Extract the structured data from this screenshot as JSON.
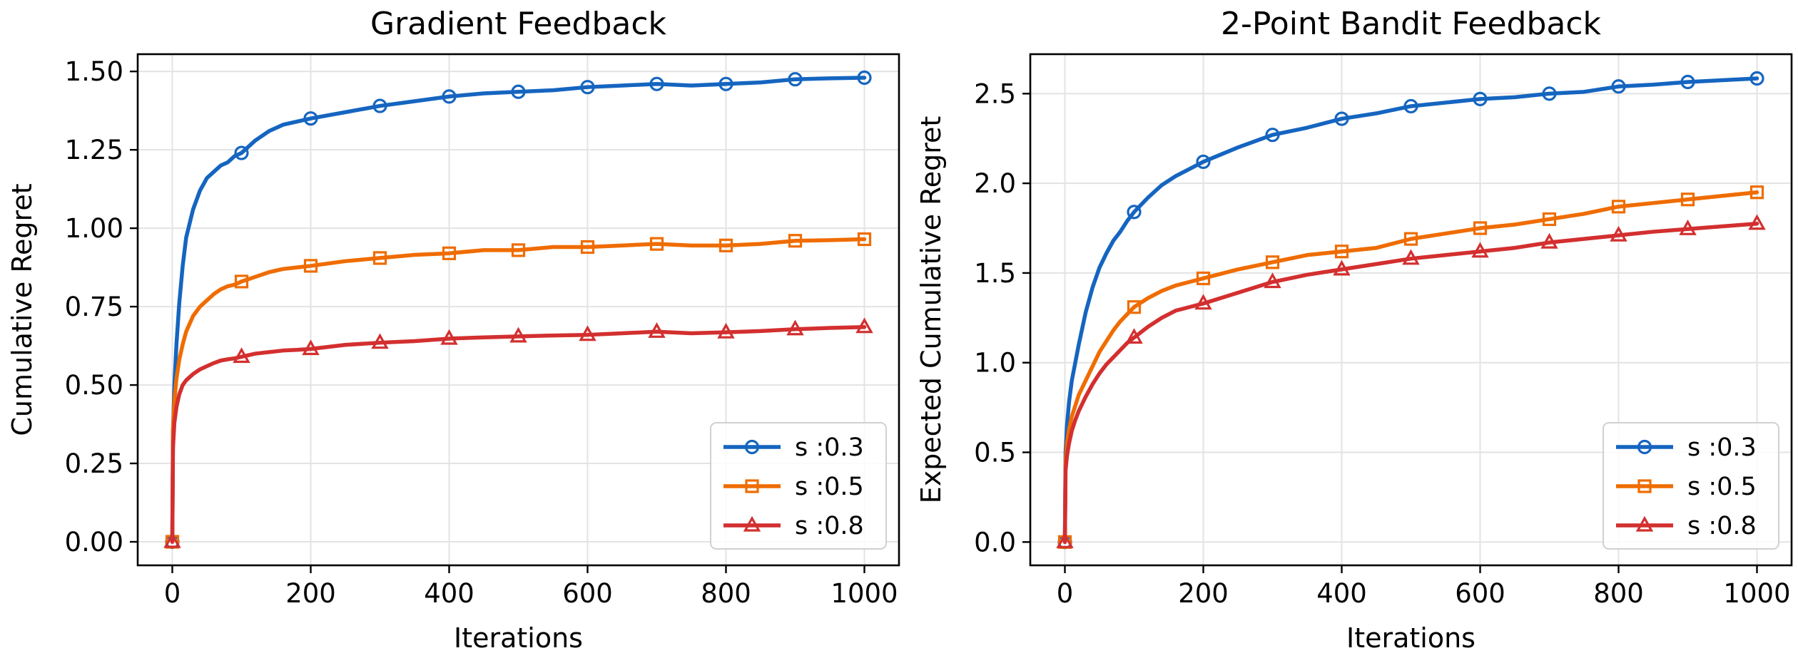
{
  "chart_data": [
    {
      "type": "line",
      "title": "Gradient Feedback",
      "xlabel": "Iterations",
      "ylabel": "Cumulative Regret",
      "xlim": [
        -50,
        1050
      ],
      "ylim": [
        -0.075,
        1.555
      ],
      "xticks": [
        "0",
        "200",
        "400",
        "600",
        "800",
        "1000"
      ],
      "yticks": [
        "0.00",
        "0.25",
        "0.50",
        "0.75",
        "1.00",
        "1.25",
        "1.50"
      ],
      "grid": true,
      "legend_position": "lower right",
      "marker_x": [
        0,
        100,
        200,
        300,
        400,
        500,
        600,
        700,
        800,
        900,
        1000
      ],
      "series": [
        {
          "name": "s :0.3",
          "color": "#1565c0",
          "marker": "circle",
          "x": [
            0,
            1,
            3,
            6,
            10,
            15,
            20,
            30,
            40,
            50,
            60,
            70,
            80,
            90,
            100,
            120,
            140,
            160,
            180,
            200,
            250,
            300,
            350,
            400,
            450,
            500,
            550,
            600,
            650,
            700,
            750,
            800,
            850,
            900,
            950,
            1000
          ],
          "values": [
            0.0,
            0.35,
            0.5,
            0.63,
            0.76,
            0.88,
            0.97,
            1.06,
            1.12,
            1.16,
            1.18,
            1.2,
            1.21,
            1.23,
            1.24,
            1.28,
            1.31,
            1.33,
            1.34,
            1.35,
            1.37,
            1.39,
            1.405,
            1.42,
            1.43,
            1.435,
            1.44,
            1.45,
            1.455,
            1.46,
            1.455,
            1.46,
            1.465,
            1.475,
            1.478,
            1.48
          ]
        },
        {
          "name": "s :0.5",
          "color": "#ef6c00",
          "marker": "square",
          "x": [
            0,
            1,
            3,
            6,
            10,
            15,
            20,
            30,
            40,
            50,
            60,
            70,
            80,
            90,
            100,
            120,
            140,
            160,
            180,
            200,
            250,
            300,
            350,
            400,
            450,
            500,
            550,
            600,
            650,
            700,
            750,
            800,
            850,
            900,
            950,
            1000
          ],
          "values": [
            0.0,
            0.36,
            0.45,
            0.52,
            0.58,
            0.63,
            0.67,
            0.72,
            0.75,
            0.77,
            0.79,
            0.805,
            0.815,
            0.82,
            0.83,
            0.845,
            0.86,
            0.87,
            0.875,
            0.88,
            0.895,
            0.905,
            0.915,
            0.92,
            0.93,
            0.93,
            0.94,
            0.94,
            0.945,
            0.95,
            0.945,
            0.945,
            0.95,
            0.96,
            0.962,
            0.965
          ]
        },
        {
          "name": "s :0.8",
          "color": "#d32f2f",
          "marker": "triangle",
          "x": [
            0,
            1,
            3,
            6,
            10,
            15,
            20,
            30,
            40,
            50,
            60,
            70,
            80,
            90,
            100,
            120,
            140,
            160,
            180,
            200,
            250,
            300,
            350,
            400,
            450,
            500,
            550,
            600,
            650,
            700,
            750,
            800,
            850,
            900,
            950,
            1000
          ],
          "values": [
            0.0,
            0.3,
            0.38,
            0.43,
            0.47,
            0.5,
            0.515,
            0.535,
            0.55,
            0.56,
            0.57,
            0.578,
            0.582,
            0.585,
            0.59,
            0.6,
            0.605,
            0.61,
            0.612,
            0.615,
            0.628,
            0.635,
            0.64,
            0.648,
            0.652,
            0.655,
            0.658,
            0.66,
            0.665,
            0.67,
            0.665,
            0.668,
            0.672,
            0.678,
            0.682,
            0.685
          ]
        }
      ]
    },
    {
      "type": "line",
      "title": "2-Point Bandit Feedback",
      "xlabel": "Iterations",
      "ylabel": "Expected Cumulative Regret",
      "xlim": [
        -50,
        1050
      ],
      "ylim": [
        -0.13,
        2.72
      ],
      "xticks": [
        "0",
        "200",
        "400",
        "600",
        "800",
        "1000"
      ],
      "yticks": [
        "0.0",
        "0.5",
        "1.0",
        "1.5",
        "2.0",
        "2.5"
      ],
      "grid": true,
      "legend_position": "lower right",
      "marker_x": [
        0,
        100,
        200,
        300,
        400,
        500,
        600,
        700,
        800,
        900,
        1000
      ],
      "series": [
        {
          "name": "s :0.3",
          "color": "#1565c0",
          "marker": "circle",
          "x": [
            0,
            1,
            3,
            6,
            10,
            15,
            20,
            30,
            40,
            50,
            60,
            70,
            80,
            90,
            100,
            120,
            140,
            160,
            180,
            200,
            250,
            300,
            350,
            400,
            450,
            500,
            550,
            600,
            650,
            700,
            750,
            800,
            850,
            900,
            950,
            1000
          ],
          "values": [
            0.0,
            0.5,
            0.65,
            0.78,
            0.9,
            1.0,
            1.1,
            1.28,
            1.42,
            1.53,
            1.61,
            1.68,
            1.73,
            1.79,
            1.84,
            1.92,
            1.99,
            2.04,
            2.08,
            2.12,
            2.2,
            2.27,
            2.31,
            2.36,
            2.39,
            2.43,
            2.45,
            2.47,
            2.48,
            2.5,
            2.51,
            2.54,
            2.55,
            2.565,
            2.575,
            2.585
          ]
        },
        {
          "name": "s :0.5",
          "color": "#ef6c00",
          "marker": "square",
          "x": [
            0,
            1,
            3,
            6,
            10,
            15,
            20,
            30,
            40,
            50,
            60,
            70,
            80,
            90,
            100,
            120,
            140,
            160,
            180,
            200,
            250,
            300,
            350,
            400,
            450,
            500,
            550,
            600,
            650,
            700,
            750,
            800,
            850,
            900,
            950,
            1000
          ],
          "values": [
            0.0,
            0.45,
            0.55,
            0.63,
            0.7,
            0.76,
            0.82,
            0.9,
            0.98,
            1.06,
            1.12,
            1.18,
            1.23,
            1.27,
            1.31,
            1.36,
            1.4,
            1.43,
            1.45,
            1.47,
            1.52,
            1.56,
            1.6,
            1.62,
            1.64,
            1.69,
            1.72,
            1.75,
            1.77,
            1.8,
            1.83,
            1.87,
            1.89,
            1.91,
            1.93,
            1.95
          ]
        },
        {
          "name": "s :0.8",
          "color": "#d32f2f",
          "marker": "triangle",
          "x": [
            0,
            1,
            3,
            6,
            10,
            15,
            20,
            30,
            40,
            50,
            60,
            70,
            80,
            90,
            100,
            120,
            140,
            160,
            180,
            200,
            250,
            300,
            350,
            400,
            450,
            500,
            550,
            600,
            650,
            700,
            750,
            800,
            850,
            900,
            950,
            1000
          ],
          "values": [
            0.0,
            0.4,
            0.48,
            0.55,
            0.62,
            0.68,
            0.73,
            0.81,
            0.88,
            0.94,
            0.99,
            1.03,
            1.07,
            1.11,
            1.14,
            1.2,
            1.25,
            1.29,
            1.31,
            1.33,
            1.39,
            1.45,
            1.49,
            1.52,
            1.55,
            1.58,
            1.6,
            1.62,
            1.64,
            1.67,
            1.69,
            1.71,
            1.73,
            1.745,
            1.76,
            1.775
          ]
        }
      ]
    }
  ]
}
